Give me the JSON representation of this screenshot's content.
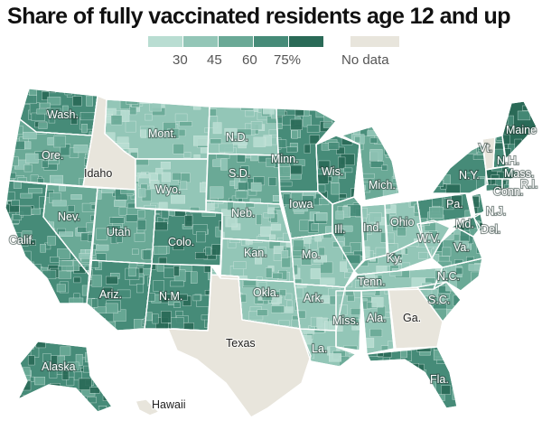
{
  "title": "Share of fully vaccinated residents age 12 and up",
  "legend": {
    "ticks": [
      "30",
      "45",
      "60",
      "75%"
    ],
    "colors": [
      "#b9ddd2",
      "#93c6b7",
      "#6aa996",
      "#468b78",
      "#2a6a57"
    ],
    "no_data_label": "No data",
    "no_data_color": "#e8e5dc"
  },
  "palette": {
    "border": "#ffffff",
    "county_line": "#d8ebe5"
  },
  "states": [
    {
      "id": "wa",
      "label": "Wash.",
      "level": 3
    },
    {
      "id": "or",
      "label": "Ore.",
      "level": 2
    },
    {
      "id": "ca",
      "label": "Calif.",
      "level": 3
    },
    {
      "id": "id",
      "label": "Idaho",
      "level": null
    },
    {
      "id": "nv",
      "label": "Nev.",
      "level": 2
    },
    {
      "id": "mt",
      "label": "Mont.",
      "level": 1
    },
    {
      "id": "wy",
      "label": "Wyo.",
      "level": 1
    },
    {
      "id": "ut",
      "label": "Utah",
      "level": 2
    },
    {
      "id": "az",
      "label": "Ariz.",
      "level": 3
    },
    {
      "id": "co",
      "label": "Colo.",
      "level": 3
    },
    {
      "id": "nm",
      "label": "N.M.",
      "level": 3
    },
    {
      "id": "nd",
      "label": "N.D.",
      "level": 1
    },
    {
      "id": "sd",
      "label": "S.D.",
      "level": 2
    },
    {
      "id": "ne",
      "label": "Neb.",
      "level": 1
    },
    {
      "id": "ks",
      "label": "Kan.",
      "level": 1
    },
    {
      "id": "ok",
      "label": "Okla.",
      "level": 1
    },
    {
      "id": "tx",
      "label": "Texas",
      "level": null
    },
    {
      "id": "mn",
      "label": "Minn.",
      "level": 3
    },
    {
      "id": "ia",
      "label": "Iowa",
      "level": 2
    },
    {
      "id": "mo",
      "label": "Mo.",
      "level": 1
    },
    {
      "id": "ar",
      "label": "Ark.",
      "level": 1
    },
    {
      "id": "la",
      "label": "La.",
      "level": 1
    },
    {
      "id": "wi",
      "label": "Wis.",
      "level": 3
    },
    {
      "id": "il",
      "label": "Ill.",
      "level": 2
    },
    {
      "id": "mi",
      "label": "Mich.",
      "level": 2
    },
    {
      "id": "in",
      "label": "Ind.",
      "level": 1
    },
    {
      "id": "oh",
      "label": "Ohio",
      "level": 1
    },
    {
      "id": "ky",
      "label": "Ky.",
      "level": 1
    },
    {
      "id": "tn",
      "label": "Tenn.",
      "level": 1
    },
    {
      "id": "ms",
      "label": "Miss.",
      "level": 1
    },
    {
      "id": "al",
      "label": "Ala.",
      "level": 1
    },
    {
      "id": "ga",
      "label": "Ga.",
      "level": null
    },
    {
      "id": "fl",
      "label": "Fla.",
      "level": 3
    },
    {
      "id": "sc",
      "label": "S.C.",
      "level": 2
    },
    {
      "id": "nc",
      "label": "N.C.",
      "level": 2
    },
    {
      "id": "va",
      "label": "Va.",
      "level": 2
    },
    {
      "id": "wv",
      "label": "W.V.",
      "level": 1
    },
    {
      "id": "pa",
      "label": "Pa.",
      "level": 3
    },
    {
      "id": "ny",
      "label": "N.Y.",
      "level": 3
    },
    {
      "id": "md",
      "label": "Md.",
      "level": 3
    },
    {
      "id": "de",
      "label": "Del.",
      "level": 3
    },
    {
      "id": "nj",
      "label": "N.J.",
      "level": 3
    },
    {
      "id": "vt",
      "label": "Vt.",
      "level": null
    },
    {
      "id": "nh",
      "label": "N.H.",
      "level": 3
    },
    {
      "id": "me",
      "label": "Maine",
      "level": 4
    },
    {
      "id": "ma",
      "label": "Mass.",
      "level": 4
    },
    {
      "id": "ct",
      "label": "Conn.",
      "level": 4
    },
    {
      "id": "ri",
      "label": "R.I.",
      "level": 4
    },
    {
      "id": "ak",
      "label": "Alaska",
      "level": 3
    },
    {
      "id": "hi",
      "label": "Hawaii",
      "level": null
    }
  ]
}
